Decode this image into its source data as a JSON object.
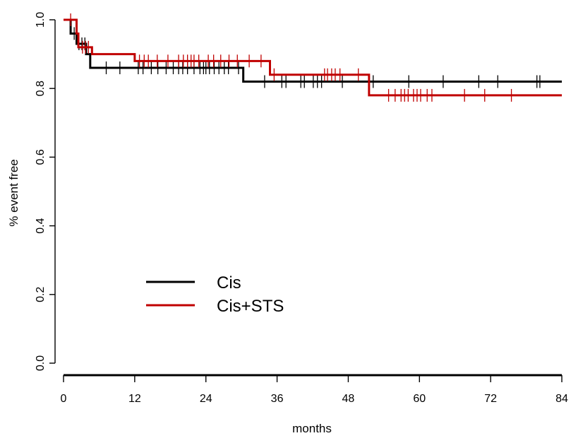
{
  "chart_data": {
    "type": "line",
    "subtype": "kaplan-meier",
    "title": "",
    "xlabel": "months",
    "ylabel": "% event free",
    "xlim": [
      0,
      84
    ],
    "ylim": [
      0,
      1.0
    ],
    "x_ticks": [
      0,
      12,
      24,
      36,
      48,
      60,
      72,
      84
    ],
    "y_ticks": [
      "0.0",
      "0.2",
      "0.4",
      "0.6",
      "0.8",
      "1.0"
    ],
    "grid": false,
    "legend_position": "bottom-left",
    "series": [
      {
        "name": "Cis",
        "color": "#000000",
        "steps": [
          [
            0,
            1.0
          ],
          [
            1.2,
            0.96
          ],
          [
            2.2,
            0.93
          ],
          [
            3.8,
            0.9
          ],
          [
            4.5,
            0.86
          ],
          [
            30.3,
            0.82
          ]
        ],
        "censor_times": [
          1.8,
          2.6,
          3.1,
          3.6,
          7.2,
          9.5,
          12.6,
          13.4,
          14.8,
          15.9,
          17.3,
          18.5,
          19.4,
          20.1,
          20.9,
          22.0,
          23.0,
          23.6,
          24.0,
          24.6,
          25.4,
          26.2,
          27.1,
          27.8,
          29.5,
          33.9,
          36.8,
          37.5,
          40.0,
          40.6,
          42.1,
          42.8,
          43.5,
          47.0,
          52.2,
          58.2,
          64.0,
          70.0,
          73.2,
          79.8,
          80.3
        ]
      },
      {
        "name": "Cis+STS",
        "color": "#c00000",
        "steps": [
          [
            0,
            1.0
          ],
          [
            2.2,
            0.96
          ],
          [
            2.5,
            0.92
          ],
          [
            4.8,
            0.9
          ],
          [
            12.0,
            0.88
          ],
          [
            34.8,
            0.84
          ],
          [
            51.5,
            0.78
          ]
        ],
        "censor_times": [
          1.2,
          3.2,
          3.7,
          4.2,
          12.8,
          13.6,
          14.3,
          15.8,
          17.6,
          19.4,
          20.2,
          20.9,
          21.5,
          22.0,
          22.8,
          24.4,
          25.3,
          26.5,
          27.9,
          29.3,
          31.3,
          33.3,
          35.5,
          44.0,
          44.5,
          45.2,
          45.8,
          46.6,
          49.7,
          54.8,
          55.9,
          56.9,
          57.5,
          58.1,
          59.0,
          59.6,
          60.2,
          61.3,
          62.1,
          67.6,
          71.0,
          75.5
        ]
      }
    ]
  }
}
